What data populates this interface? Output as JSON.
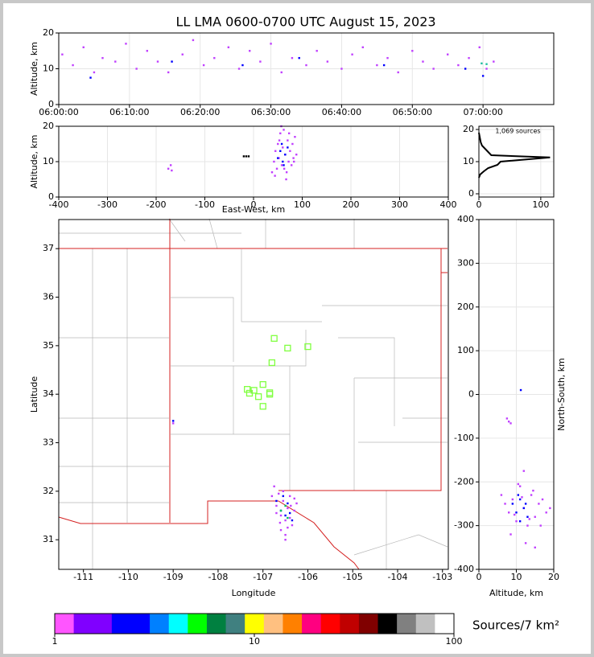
{
  "chart_data": [
    {
      "type": "scatter",
      "title": "LL LMA 0600-0700 UTC August 15, 2023",
      "ylabel": "Altitude, km",
      "xlim": [
        0,
        70
      ],
      "xticks": [
        {
          "value": 0,
          "label": "06:00:00"
        },
        {
          "value": 10,
          "label": "06:10:00"
        },
        {
          "value": 20,
          "label": "06:20:00"
        },
        {
          "value": 30,
          "label": "06:30:00"
        },
        {
          "value": 40,
          "label": "06:40:00"
        },
        {
          "value": 50,
          "label": "06:50:00"
        },
        {
          "value": 60,
          "label": "07:00:00"
        }
      ],
      "ylim": [
        0,
        20
      ],
      "yticks": [
        0,
        10,
        20
      ],
      "grid": true,
      "series": [
        {
          "color": "#c040ff",
          "x": [
            0.5,
            2,
            3.5,
            5,
            6.2,
            8,
            9.5,
            11,
            12.5,
            14,
            15.5,
            17.5,
            19,
            20.5,
            22,
            24,
            25.5,
            27,
            28.5,
            30,
            31.5,
            33,
            35,
            36.5,
            38,
            40,
            41.5,
            43,
            45,
            46.5,
            48,
            50,
            51.5,
            53,
            55,
            56.5,
            58,
            59.5,
            60.5,
            61.5
          ],
          "y": [
            14,
            11,
            16,
            9,
            13,
            12,
            17,
            10,
            15,
            12,
            9,
            14,
            18,
            11,
            13,
            16,
            10,
            15,
            12,
            17,
            9,
            13,
            11,
            15,
            12,
            10,
            14,
            16,
            11,
            13,
            9,
            15,
            12,
            10,
            14,
            11,
            13,
            16,
            10,
            12
          ]
        },
        {
          "color": "#0000ff",
          "x": [
            4.5,
            16,
            26,
            34,
            46,
            57.5,
            60
          ],
          "y": [
            7.5,
            12,
            11,
            13,
            11,
            10,
            8
          ]
        },
        {
          "color": "#20c0a0",
          "x": [
            59.8,
            60.5
          ],
          "y": [
            11.5,
            11.3
          ]
        }
      ]
    },
    {
      "type": "scatter",
      "xlabel": "East-West, km",
      "ylabel": "Altitude, km",
      "xlim": [
        -400,
        400
      ],
      "xticks": [
        -400,
        -300,
        -200,
        -100,
        0,
        100,
        200,
        300,
        400
      ],
      "ylim": [
        0,
        20
      ],
      "yticks": [
        0,
        10,
        20
      ],
      "grid": true,
      "series": [
        {
          "color": "#c040ff",
          "x": [
            38,
            42,
            45,
            48,
            50,
            52,
            55,
            58,
            60,
            62,
            65,
            68,
            70,
            72,
            75,
            78,
            80,
            82,
            85,
            88,
            44,
            53,
            63,
            73,
            83,
            57,
            67,
            -175,
            -170,
            -168
          ],
          "y": [
            7,
            10,
            13,
            8,
            15,
            11,
            18,
            9,
            14,
            19,
            12,
            7,
            16,
            10,
            13,
            9,
            15,
            11,
            17,
            12,
            6,
            16,
            8,
            18,
            10,
            20,
            5,
            8,
            9,
            7.5
          ]
        },
        {
          "color": "#0000ff",
          "x": [
            50,
            55,
            60,
            65,
            70,
            58,
            62
          ],
          "y": [
            11,
            13,
            10,
            12,
            14,
            15,
            9
          ]
        },
        {
          "color": "#000000",
          "x": [
            -20,
            -15,
            -10
          ],
          "y": [
            11.5,
            11.5,
            11.5
          ]
        }
      ]
    },
    {
      "type": "line",
      "annotation": "1,069 sources",
      "xlim": [
        0,
        121
      ],
      "xticks": [
        0,
        100
      ],
      "ylim": [
        -1,
        21
      ],
      "yticks": [
        0,
        10,
        20
      ],
      "grid": true,
      "color": "#000000",
      "x": [
        0,
        2,
        8,
        15,
        30,
        35,
        115,
        20,
        15,
        10,
        5,
        3,
        2,
        1,
        0
      ],
      "y": [
        5,
        6,
        7,
        8,
        9,
        10,
        11.3,
        12,
        13,
        14,
        15,
        16,
        17,
        18,
        19
      ]
    },
    {
      "type": "scatter",
      "xlabel": "Longitude",
      "ylabel": "Latitude",
      "xlim": [
        -111.55,
        -102.87
      ],
      "xticks": [
        -111,
        -110,
        -109,
        -108,
        -107,
        -106,
        -105,
        -104,
        -103
      ],
      "ylim": [
        30.39,
        37.6
      ],
      "yticks": [
        31,
        32,
        33,
        34,
        35,
        36,
        37
      ],
      "grid": false,
      "series": [
        {
          "color": "#c040ff",
          "x": [
            -106.8,
            -106.75,
            -106.7,
            -106.65,
            -106.6,
            -106.55,
            -106.5,
            -106.45,
            -106.4,
            -106.35,
            -106.3,
            -106.25,
            -106.7,
            -106.6,
            -106.5,
            -106.4,
            -106.3,
            -106.55,
            -106.45,
            -106.62,
            -106.38,
            -106.5,
            -109.0,
            -107.25
          ],
          "y": [
            31.9,
            32.1,
            31.7,
            31.95,
            31.5,
            31.8,
            31.4,
            31.65,
            31.9,
            31.3,
            31.6,
            31.75,
            31.55,
            31.2,
            31.1,
            31.45,
            31.85,
            32.0,
            31.25,
            31.35,
            31.7,
            31.0,
            33.4,
            34.05
          ]
        },
        {
          "color": "#0000ff",
          "x": [
            -106.7,
            -106.6,
            -106.5,
            -106.45,
            -106.35,
            -106.55,
            -106.4,
            -109.0
          ],
          "y": [
            31.8,
            31.6,
            31.5,
            31.75,
            31.4,
            31.9,
            31.55,
            33.45
          ]
        },
        {
          "color": "#00c060",
          "x": [
            -106.6,
            -106.45,
            -106.5
          ],
          "y": [
            31.6,
            31.45,
            31.7
          ]
        }
      ],
      "stations": {
        "color": "#80ff40",
        "x": [
          -106.75,
          -106.45,
          -106.0,
          -106.8,
          -107.0,
          -107.2,
          -107.3,
          -106.85,
          -107.1,
          -107.0,
          -106.85,
          -107.35
        ],
        "y": [
          35.15,
          34.95,
          34.98,
          34.65,
          34.2,
          34.08,
          34.02,
          34.0,
          33.95,
          33.75,
          34.03,
          34.1
        ]
      }
    },
    {
      "type": "scatter",
      "xlabel": "Altitude, km",
      "ylabel": "North-South, km",
      "xlim": [
        0,
        20
      ],
      "xticks": [
        0,
        10,
        20
      ],
      "ylim": [
        -400,
        400
      ],
      "yticks": [
        -400,
        -300,
        -200,
        -100,
        0,
        100,
        200,
        300,
        400
      ],
      "grid": true,
      "series": [
        {
          "color": "#c040ff",
          "x": [
            6,
            7,
            8,
            9,
            10,
            11,
            12,
            13,
            14,
            15,
            16,
            17,
            18,
            19,
            8.5,
            10.5,
            12.5,
            14.5,
            16.5,
            9.5,
            11.5,
            13.5,
            7.5,
            8,
            8.5,
            12,
            15
          ],
          "y": [
            -230,
            -250,
            -270,
            -240,
            -290,
            -210,
            -260,
            -300,
            -230,
            -280,
            -250,
            -240,
            -270,
            -260,
            -320,
            -205,
            -340,
            -220,
            -300,
            -275,
            -235,
            -285,
            -55,
            -62,
            -66,
            -175,
            -350
          ]
        },
        {
          "color": "#0000ff",
          "x": [
            9,
            10,
            11,
            12,
            13,
            11,
            10.5,
            12.5,
            11.2
          ],
          "y": [
            -250,
            -270,
            -240,
            -260,
            -280,
            -290,
            -230,
            -250,
            10
          ]
        }
      ]
    },
    {
      "type": "colorbar",
      "label": "Sources/7 km²",
      "log": true,
      "xlim": [
        1,
        100
      ],
      "xticks": [
        1,
        10,
        100
      ],
      "colors": [
        "#ff55ff",
        "#8000ff",
        "#8000ff",
        "#0000ff",
        "#0000ff",
        "#0080ff",
        "#00ffff",
        "#00ff00",
        "#008040",
        "#408080",
        "#ffff00",
        "#ffc080",
        "#ff8000",
        "#ff0080",
        "#ff0000",
        "#c00000",
        "#800000",
        "#000000",
        "#808080",
        "#c0c0c0",
        "#ffffff"
      ]
    }
  ]
}
